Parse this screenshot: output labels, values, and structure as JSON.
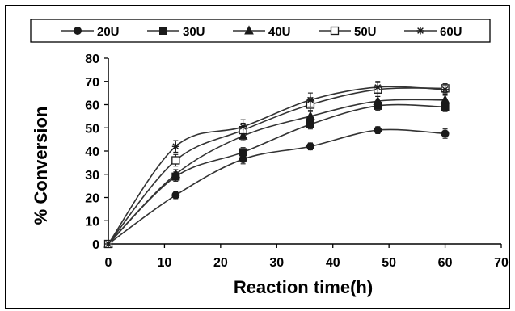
{
  "chart_data": {
    "type": "line",
    "x": [
      0,
      12,
      24,
      36,
      48,
      60
    ],
    "series": [
      {
        "name": "20U",
        "values": [
          0,
          21,
          36.5,
          42,
          49,
          47.5
        ],
        "errors": [
          0,
          1.5,
          2,
          1.5,
          1.5,
          2
        ],
        "marker": "filled-circle"
      },
      {
        "name": "30U",
        "values": [
          0,
          29,
          39.5,
          51.5,
          59.5,
          59
        ],
        "errors": [
          0,
          2,
          2,
          2,
          2,
          2
        ],
        "marker": "filled-square"
      },
      {
        "name": "40U",
        "values": [
          0,
          30,
          46.5,
          55,
          61.5,
          62
        ],
        "errors": [
          0,
          2,
          2,
          2.5,
          2,
          2
        ],
        "marker": "filled-triangle"
      },
      {
        "name": "50U",
        "values": [
          0,
          36,
          49,
          60,
          66.5,
          67
        ],
        "errors": [
          0,
          2.5,
          3,
          3,
          3,
          2
        ],
        "marker": "open-square"
      },
      {
        "name": "60U",
        "values": [
          0,
          42,
          50.5,
          62,
          67.5,
          66.5
        ],
        "errors": [
          0,
          2.5,
          3,
          3,
          2.5,
          2
        ],
        "marker": "star"
      }
    ],
    "xlabel": "Reaction time(h)",
    "ylabel": "% Conversion",
    "xlim": [
      0,
      70
    ],
    "ylim": [
      0,
      80
    ],
    "xticks": [
      "0",
      "10",
      "20",
      "30",
      "40",
      "50",
      "60",
      "70"
    ],
    "yticks": [
      "0",
      "10",
      "20",
      "30",
      "40",
      "50",
      "60",
      "70",
      "80"
    ],
    "grid": false,
    "legend_position": "top",
    "colors": {
      "line": "#333333",
      "marker": "#1a1a1a",
      "axis": "#000000"
    }
  }
}
